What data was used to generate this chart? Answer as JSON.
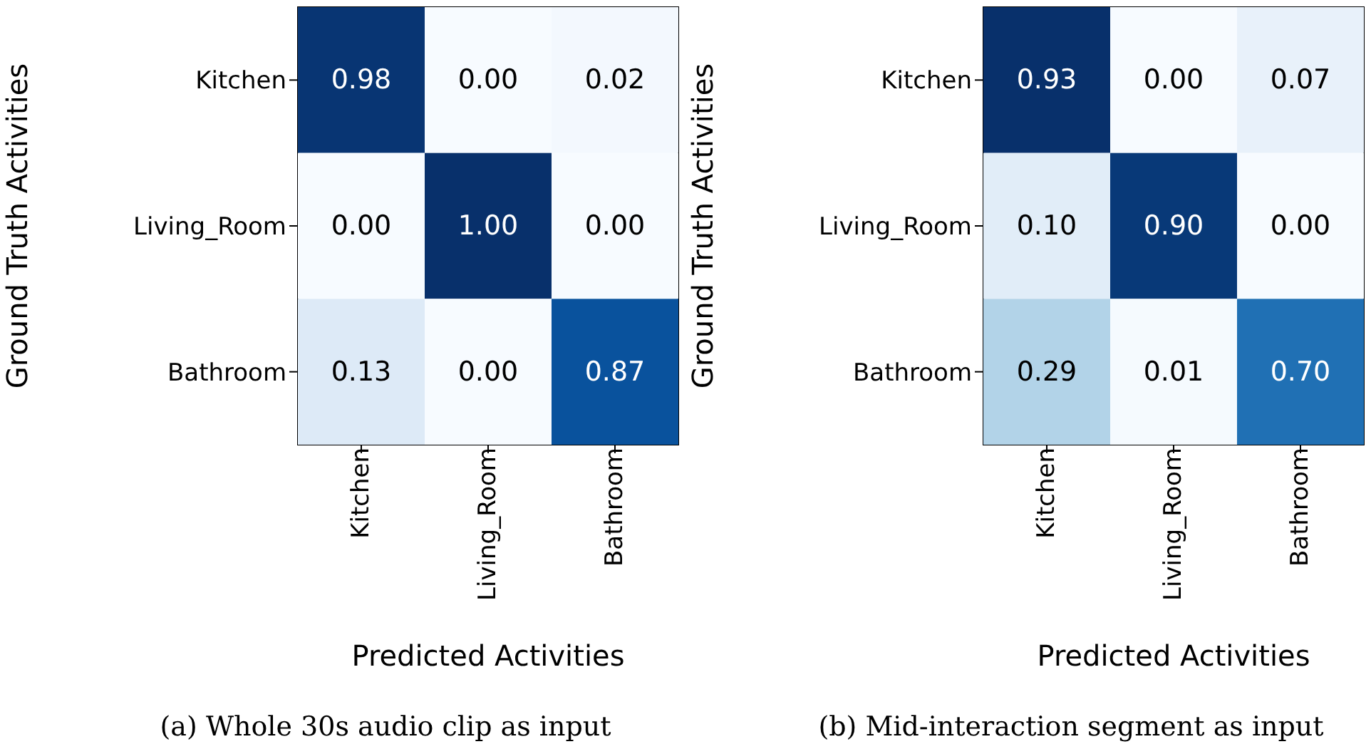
{
  "chart_data": [
    {
      "type": "heatmap",
      "xlabel": "Predicted Activities",
      "ylabel": "Ground Truth Activities",
      "categories": [
        "Kitchen",
        "Living_Room",
        "Bathroom"
      ],
      "y_categories": [
        "Kitchen",
        "Living_Room",
        "Bathroom"
      ],
      "cells": [
        [
          0.98,
          0,
          0.02
        ],
        [
          0,
          1,
          0
        ],
        [
          0.13,
          0,
          0.87
        ]
      ],
      "cell_labels": [
        [
          "0.98",
          "0.00",
          "0.02"
        ],
        [
          "0.00",
          "1.00",
          "0.00"
        ],
        [
          "0.13",
          "0.00",
          "0.87"
        ]
      ],
      "annotations": [
        "(a) Whole 30s audio clip as input"
      ]
    },
    {
      "type": "heatmap",
      "xlabel": "Predicted Activities",
      "ylabel": "Ground Truth Activities",
      "categories": [
        "Kitchen",
        "Living_Room",
        "Bathroom"
      ],
      "y_categories": [
        "Kitchen",
        "Living_Room",
        "Bathroom"
      ],
      "cells": [
        [
          0.93,
          0,
          0.07
        ],
        [
          0.1,
          0.9,
          0
        ],
        [
          0.29,
          0.01,
          0.7
        ]
      ],
      "cell_labels": [
        [
          "0.93",
          "0.00",
          "0.07"
        ],
        [
          "0.10",
          "0.90",
          "0.00"
        ],
        [
          "0.29",
          "0.01",
          "0.70"
        ]
      ],
      "annotations": [
        "(b) Mid-interaction segment as input"
      ]
    }
  ]
}
